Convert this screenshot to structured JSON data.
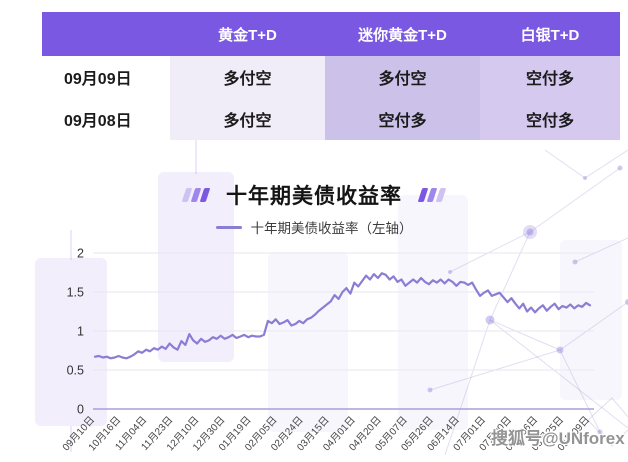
{
  "table": {
    "corner": "",
    "headers": [
      "黄金T+D",
      "迷你黄金T+D",
      "白银T+D"
    ],
    "rows": [
      {
        "date": "09月09日",
        "cells": [
          "多付空",
          "多付空",
          "空付多"
        ]
      },
      {
        "date": "09月08日",
        "cells": [
          "多付空",
          "空付多",
          "空付多"
        ]
      }
    ]
  },
  "section": {
    "title": "十年期美债收益率",
    "legend_label": "十年期美债收益率（左轴）"
  },
  "watermark": "搜狐号@UNforex",
  "colors": {
    "header_bg": "#7a58e2",
    "col_gold_bg": "#f0ecf8",
    "col_mini_bg": "#ccc2e9",
    "col_silver_bg": "#d6c9f0",
    "line": "#8a7dd4",
    "axis_zero": "#a89fd8",
    "grid": "#e8e6ee",
    "tick_dark": "#7b57e4",
    "tick_mid": "#9f86ea",
    "tick_light": "#cfc2f2"
  },
  "chart_data": {
    "type": "line",
    "title": "十年期美债收益率",
    "xlabel": "",
    "ylabel": "",
    "ylim": [
      0,
      2
    ],
    "yticks": [
      0,
      0.5,
      1,
      1.5,
      2
    ],
    "grid": true,
    "legend_position": "top",
    "x_tick_labels": [
      "09月10日",
      "10月16日",
      "11月04日",
      "11月23日",
      "12月10日",
      "12月30日",
      "01月19日",
      "02月05日",
      "02月24日",
      "03月15日",
      "04月01日",
      "04月20日",
      "05月07日",
      "05月26日",
      "06月14日",
      "07月01日",
      "07月20日",
      "08月06日",
      "08月25日",
      "09月09日"
    ],
    "series": [
      {
        "name": "十年期美债收益率（左轴）",
        "values": [
          0.67,
          0.68,
          0.66,
          0.67,
          0.65,
          0.66,
          0.68,
          0.66,
          0.65,
          0.67,
          0.7,
          0.74,
          0.72,
          0.76,
          0.74,
          0.78,
          0.76,
          0.8,
          0.77,
          0.84,
          0.79,
          0.76,
          0.87,
          0.82,
          0.96,
          0.88,
          0.84,
          0.9,
          0.86,
          0.88,
          0.92,
          0.9,
          0.94,
          0.9,
          0.92,
          0.95,
          0.91,
          0.93,
          0.95,
          0.92,
          0.94,
          0.93,
          0.93,
          0.95,
          1.13,
          1.1,
          1.15,
          1.09,
          1.11,
          1.14,
          1.07,
          1.09,
          1.13,
          1.1,
          1.15,
          1.17,
          1.21,
          1.26,
          1.3,
          1.34,
          1.38,
          1.46,
          1.41,
          1.5,
          1.55,
          1.48,
          1.62,
          1.57,
          1.64,
          1.71,
          1.66,
          1.73,
          1.68,
          1.74,
          1.72,
          1.66,
          1.7,
          1.63,
          1.66,
          1.58,
          1.62,
          1.66,
          1.62,
          1.68,
          1.63,
          1.6,
          1.65,
          1.62,
          1.66,
          1.61,
          1.66,
          1.63,
          1.58,
          1.63,
          1.62,
          1.59,
          1.62,
          1.53,
          1.45,
          1.49,
          1.52,
          1.45,
          1.47,
          1.49,
          1.43,
          1.37,
          1.42,
          1.35,
          1.29,
          1.35,
          1.25,
          1.3,
          1.24,
          1.29,
          1.33,
          1.26,
          1.31,
          1.35,
          1.28,
          1.32,
          1.3,
          1.34,
          1.29,
          1.33,
          1.31,
          1.36,
          1.33
        ]
      }
    ]
  }
}
